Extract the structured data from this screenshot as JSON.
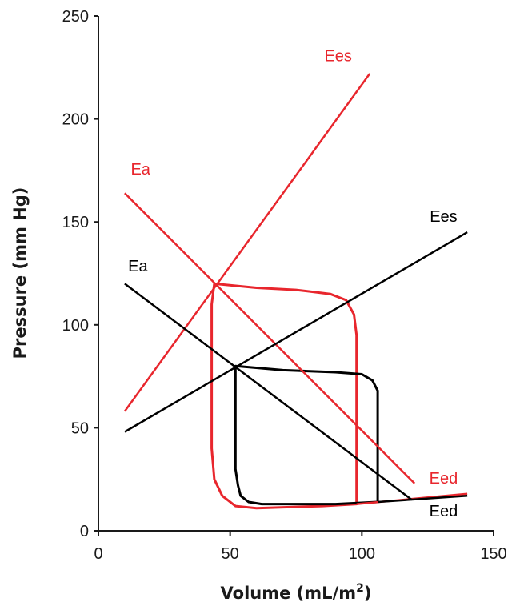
{
  "chart_data": {
    "type": "line",
    "xlabel": "Volume (mL/m",
    "xlabel_sup": "2",
    "xlabel_end": ")",
    "ylabel": "Pressure (mm Hg)",
    "xlim": [
      0,
      150
    ],
    "ylim": [
      0,
      250
    ],
    "xticks": [
      0,
      50,
      100,
      150
    ],
    "yticks": [
      0,
      50,
      100,
      150,
      200,
      250
    ],
    "grid": false,
    "colors": {
      "red": "#e8262d",
      "black": "#000000"
    },
    "series": [
      {
        "name": "Ees",
        "color": "#e8262d",
        "points": [
          [
            10,
            58
          ],
          [
            103,
            222
          ]
        ]
      },
      {
        "name": "Ea",
        "color": "#e8262d",
        "points": [
          [
            10,
            164
          ],
          [
            120,
            23
          ]
        ]
      },
      {
        "name": "Eed",
        "color": "#e8262d",
        "points": [
          [
            98,
            13
          ],
          [
            140,
            18
          ]
        ]
      },
      {
        "name": "Ees",
        "color": "#000000",
        "points": [
          [
            10,
            48
          ],
          [
            140,
            145
          ]
        ]
      },
      {
        "name": "Ea",
        "color": "#000000",
        "points": [
          [
            10,
            120
          ],
          [
            119,
            15
          ]
        ]
      },
      {
        "name": "Eed",
        "color": "#000000",
        "points": [
          [
            106,
            14
          ],
          [
            140,
            17
          ]
        ]
      }
    ],
    "loops": [
      {
        "color": "#e8262d",
        "points": [
          [
            44,
            120
          ],
          [
            60,
            118
          ],
          [
            75,
            117
          ],
          [
            88,
            115
          ],
          [
            94,
            112
          ],
          [
            97,
            105
          ],
          [
            98,
            95
          ],
          [
            98,
            60
          ],
          [
            98,
            30
          ],
          [
            98,
            13
          ],
          [
            85,
            12
          ],
          [
            60,
            11
          ],
          [
            52,
            12
          ],
          [
            47,
            17
          ],
          [
            44,
            25
          ],
          [
            43,
            40
          ],
          [
            43,
            80
          ],
          [
            43,
            110
          ],
          [
            44,
            120
          ]
        ]
      },
      {
        "color": "#000000",
        "points": [
          [
            52,
            80
          ],
          [
            70,
            78
          ],
          [
            90,
            77
          ],
          [
            100,
            76
          ],
          [
            104,
            73
          ],
          [
            106,
            68
          ],
          [
            106,
            40
          ],
          [
            106,
            14
          ],
          [
            90,
            13
          ],
          [
            70,
            13
          ],
          [
            62,
            13
          ],
          [
            57,
            14
          ],
          [
            54,
            17
          ],
          [
            53,
            22
          ],
          [
            52,
            30
          ],
          [
            52,
            50
          ],
          [
            52,
            70
          ],
          [
            52,
            80
          ]
        ]
      }
    ],
    "labels": [
      {
        "text": "Ees",
        "color": "#e8262d",
        "x": 91,
        "y": 228,
        "anchor": "middle"
      },
      {
        "text": "Ea",
        "color": "#e8262d",
        "x": 16,
        "y": 173,
        "anchor": "middle"
      },
      {
        "text": "Eed",
        "color": "#e8262d",
        "x": 131,
        "y": 23,
        "anchor": "middle"
      },
      {
        "text": "Ees",
        "color": "#000000",
        "x": 131,
        "y": 150,
        "anchor": "middle"
      },
      {
        "text": "Ea",
        "color": "#000000",
        "x": 15,
        "y": 126,
        "anchor": "middle"
      },
      {
        "text": "Eed",
        "color": "#000000",
        "x": 131,
        "y": 7,
        "anchor": "middle"
      }
    ]
  }
}
